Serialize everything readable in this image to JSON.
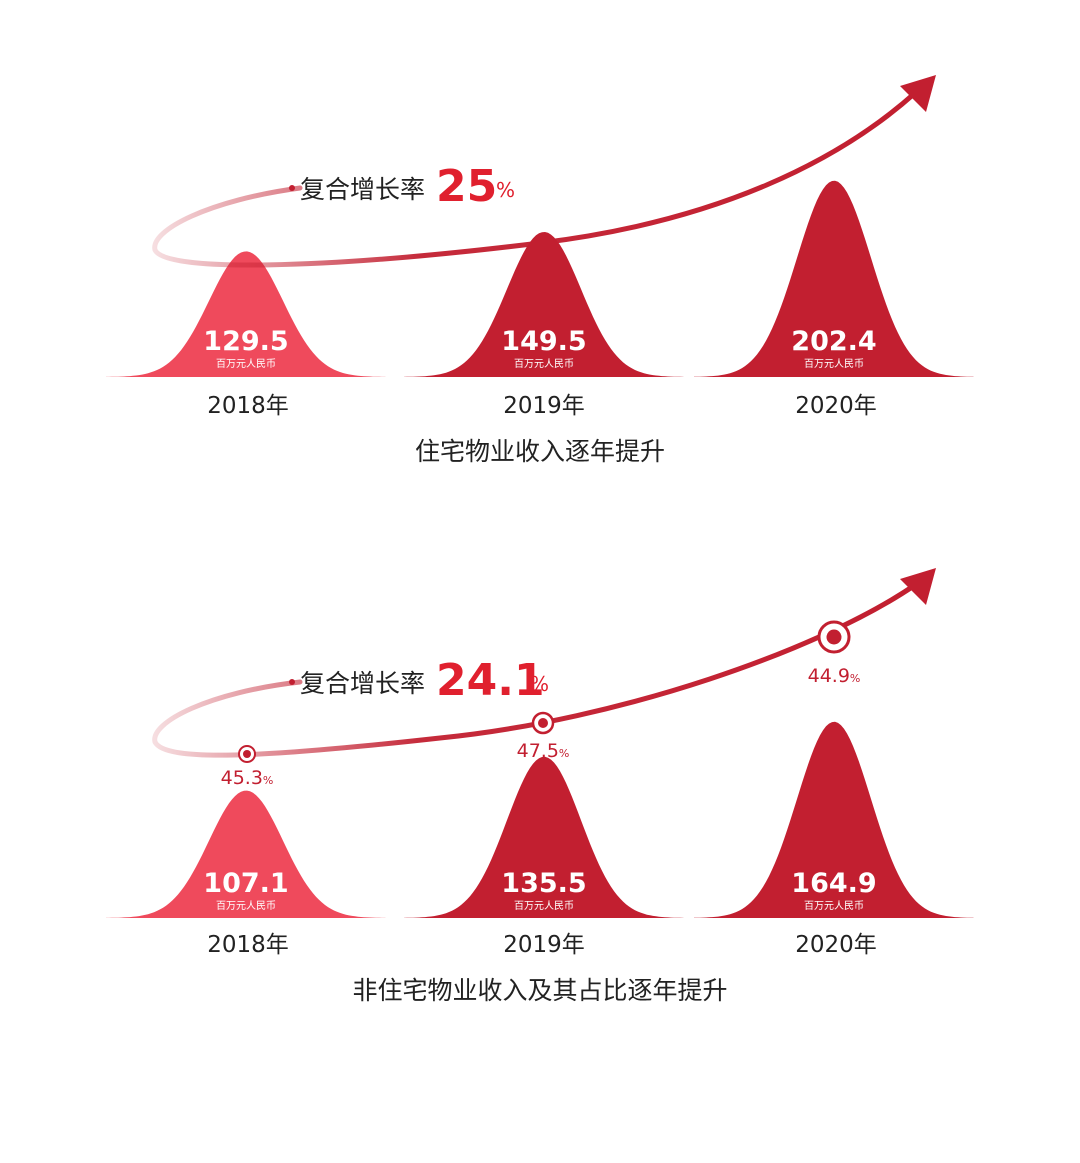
{
  "colors": {
    "light": "#ef4a5c",
    "dark": "#c21f30",
    "text": "#222222"
  },
  "value_unit": "百万元人民币",
  "chart_data": [
    {
      "type": "area",
      "title": "住宅物业收入逐年提升",
      "growth_label": "复合增长率",
      "growth_value": "25",
      "growth_unit": "%",
      "categories": [
        "2018年",
        "2019年",
        "2020年"
      ],
      "values": [
        129.5,
        149.5,
        202.4
      ],
      "value_labels": [
        "129.5",
        "149.5",
        "202.4"
      ]
    },
    {
      "type": "area",
      "title": "非住宅物业收入及其占比逐年提升",
      "growth_label": "复合增长率",
      "growth_value": "24.1",
      "growth_unit": "%",
      "categories": [
        "2018年",
        "2019年",
        "2020年"
      ],
      "values": [
        107.1,
        135.5,
        164.9
      ],
      "value_labels": [
        "107.1",
        "135.5",
        "164.9"
      ],
      "share_labels": [
        "45.3",
        "47.5",
        "44.9"
      ],
      "share_unit": "%"
    }
  ]
}
